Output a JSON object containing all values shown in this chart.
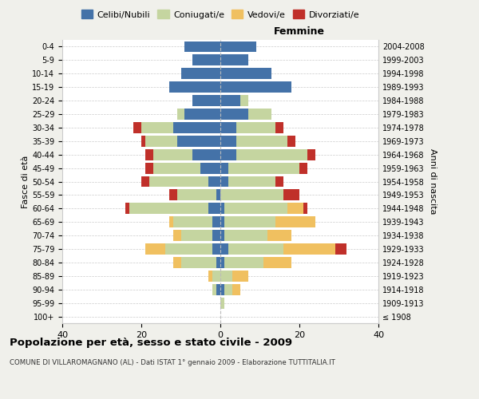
{
  "age_groups": [
    "100+",
    "95-99",
    "90-94",
    "85-89",
    "80-84",
    "75-79",
    "70-74",
    "65-69",
    "60-64",
    "55-59",
    "50-54",
    "45-49",
    "40-44",
    "35-39",
    "30-34",
    "25-29",
    "20-24",
    "15-19",
    "10-14",
    "5-9",
    "0-4"
  ],
  "birth_years": [
    "≤ 1908",
    "1909-1913",
    "1914-1918",
    "1919-1923",
    "1924-1928",
    "1929-1933",
    "1934-1938",
    "1939-1943",
    "1944-1948",
    "1949-1953",
    "1954-1958",
    "1959-1963",
    "1964-1968",
    "1969-1973",
    "1974-1978",
    "1979-1983",
    "1984-1988",
    "1989-1993",
    "1994-1998",
    "1999-2003",
    "2004-2008"
  ],
  "male": {
    "celibi": [
      0,
      0,
      1,
      0,
      1,
      2,
      2,
      2,
      3,
      1,
      3,
      5,
      7,
      11,
      12,
      9,
      7,
      13,
      10,
      7,
      9
    ],
    "coniugati": [
      0,
      0,
      1,
      2,
      9,
      12,
      8,
      10,
      20,
      10,
      15,
      12,
      10,
      8,
      8,
      2,
      0,
      0,
      0,
      0,
      0
    ],
    "vedovi": [
      0,
      0,
      0,
      1,
      2,
      5,
      2,
      1,
      0,
      0,
      0,
      0,
      0,
      0,
      0,
      0,
      0,
      0,
      0,
      0,
      0
    ],
    "divorziati": [
      0,
      0,
      0,
      0,
      0,
      0,
      0,
      0,
      1,
      2,
      2,
      2,
      2,
      1,
      2,
      0,
      0,
      0,
      0,
      0,
      0
    ]
  },
  "female": {
    "nubili": [
      0,
      0,
      1,
      0,
      1,
      2,
      1,
      1,
      1,
      0,
      2,
      2,
      4,
      4,
      4,
      7,
      5,
      18,
      13,
      7,
      9
    ],
    "coniugate": [
      0,
      1,
      2,
      3,
      10,
      14,
      11,
      13,
      16,
      16,
      12,
      18,
      18,
      13,
      10,
      6,
      2,
      0,
      0,
      0,
      0
    ],
    "vedove": [
      0,
      0,
      2,
      4,
      7,
      13,
      6,
      10,
      4,
      0,
      0,
      0,
      0,
      0,
      0,
      0,
      0,
      0,
      0,
      0,
      0
    ],
    "divorziate": [
      0,
      0,
      0,
      0,
      0,
      3,
      0,
      0,
      1,
      4,
      2,
      2,
      2,
      2,
      2,
      0,
      0,
      0,
      0,
      0,
      0
    ]
  },
  "colors": {
    "celibi": "#4472a8",
    "coniugati": "#c5d5a0",
    "vedovi": "#f0c060",
    "divorziati": "#c0302a"
  },
  "xlim": 40,
  "title": "Popolazione per età, sesso e stato civile - 2009",
  "subtitle": "COMUNE DI VILLAROMAGNANO (AL) - Dati ISTAT 1° gennaio 2009 - Elaborazione TUTTITALIA.IT",
  "ylabel_left": "Fasce di età",
  "ylabel_right": "Anni di nascita",
  "xlabel_right": "Femmine",
  "bg_color": "#f0f0eb",
  "plot_bg": "#ffffff",
  "grid_color": "#cccccc"
}
